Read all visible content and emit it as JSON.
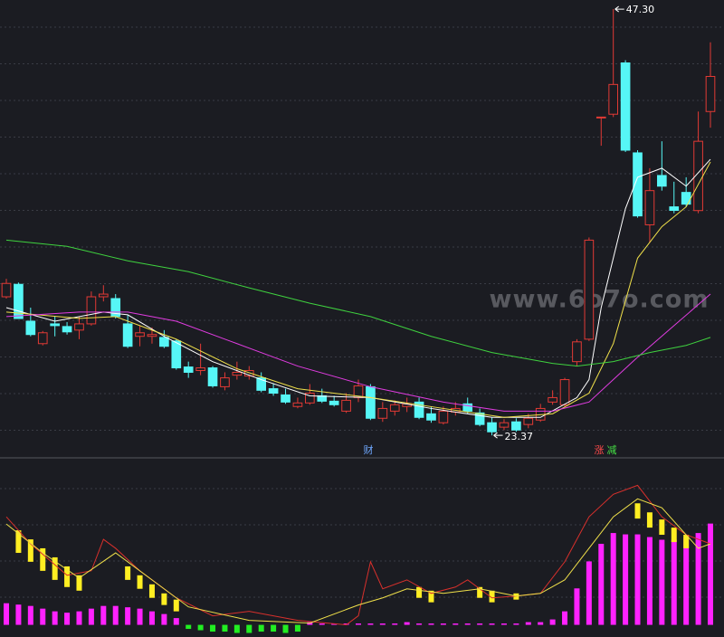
{
  "chart_data": [
    {
      "type": "candlestick",
      "up_color": "#e23a35",
      "down_color": "#56f6f6",
      "ylim": [
        22.21,
        47.71
      ],
      "open": [
        31.15,
        31.85,
        29.78,
        28.52,
        29.63,
        29.48,
        29.28,
        29.63,
        31.15,
        31.05,
        29.63,
        28.93,
        28.93,
        28.87,
        28.67,
        27.21,
        27.01,
        27.16,
        26.1,
        26.75,
        26.7,
        26.6,
        25.99,
        25.64,
        24.99,
        25.19,
        25.59,
        25.29,
        24.73,
        25.49,
        26.1,
        24.33,
        24.73,
        24.99,
        25.24,
        24.58,
        24.08,
        24.68,
        25.14,
        24.63,
        24.08,
        23.83,
        24.13,
        23.98,
        24.23,
        25.24,
        25.09,
        27.51,
        28.77,
        41.24,
        41.4,
        44.28,
        39.23,
        35.19,
        37.96,
        36.2,
        37.01,
        35.99,
        41.55
      ],
      "high": [
        32.16,
        31.95,
        30.54,
        29.23,
        30.04,
        29.73,
        30.04,
        31.45,
        31.8,
        31.3,
        30.14,
        29.53,
        29.43,
        29.28,
        28.77,
        27.51,
        28.52,
        27.26,
        26.91,
        27.51,
        27.26,
        26.91,
        26.3,
        25.99,
        25.49,
        26.25,
        25.99,
        25.59,
        25.74,
        26.5,
        26.25,
        25.24,
        25.34,
        25.49,
        25.49,
        24.99,
        24.99,
        25.24,
        25.49,
        24.88,
        24.38,
        24.28,
        24.33,
        24.58,
        25.14,
        25.9,
        26.6,
        28.77,
        34.48,
        41.24,
        47.3,
        44.43,
        39.38,
        38.37,
        39.88,
        37.61,
        37.86,
        41.55,
        45.44
      ],
      "low": [
        31.05,
        29.93,
        28.93,
        28.42,
        28.93,
        29.03,
        28.77,
        29.53,
        30.89,
        29.93,
        28.27,
        28.37,
        28.52,
        28.27,
        27.06,
        26.6,
        26.75,
        26.05,
        25.9,
        26.5,
        26.5,
        25.79,
        25.59,
        25.14,
        24.89,
        25.09,
        25.19,
        24.99,
        24.63,
        25.24,
        24.23,
        24.13,
        24.48,
        24.68,
        24.28,
        24.08,
        23.98,
        24.48,
        24.58,
        23.88,
        23.37,
        23.67,
        23.57,
        23.77,
        24.13,
        25.09,
        24.99,
        27.26,
        28.67,
        39.63,
        41.24,
        39.28,
        35.59,
        34.18,
        37.11,
        35.84,
        36.2,
        35.84,
        40.64
      ],
      "close": [
        31.9,
        29.93,
        29.03,
        29.13,
        29.53,
        29.18,
        29.63,
        31.15,
        31.3,
        30.04,
        28.37,
        29.13,
        29.03,
        28.37,
        27.16,
        26.91,
        27.16,
        26.15,
        26.6,
        26.91,
        27.01,
        25.9,
        25.74,
        25.24,
        25.19,
        25.74,
        25.29,
        25.09,
        25.34,
        26.15,
        24.33,
        24.88,
        25.09,
        25.14,
        24.38,
        24.23,
        24.73,
        24.88,
        24.73,
        23.98,
        23.57,
        24.08,
        23.67,
        24.33,
        24.88,
        25.49,
        26.5,
        28.62,
        34.33,
        41.24,
        43.07,
        39.38,
        35.69,
        37.11,
        37.36,
        36.0,
        36.35,
        39.88,
        43.52
      ],
      "lines": [
        {
          "color": "#ffffff",
          "x": [
            0,
            4,
            8,
            10,
            13,
            17,
            21,
            25,
            30,
            35,
            40,
            44,
            47,
            48,
            49,
            51,
            52,
            54,
            56,
            58
          ],
          "values": [
            30.54,
            29.78,
            30.29,
            30.14,
            28.93,
            27.51,
            26.5,
            25.59,
            25.49,
            24.88,
            24.38,
            24.38,
            25.49,
            26.5,
            30.54,
            36.1,
            37.86,
            38.37,
            37.36,
            38.87
          ]
        },
        {
          "color": "#f0e04a",
          "x": [
            0,
            6,
            9,
            14,
            19,
            24,
            30,
            36,
            41,
            45,
            48,
            50,
            52,
            54,
            56,
            58
          ],
          "values": [
            30.29,
            29.94,
            30.04,
            28.77,
            27.11,
            25.99,
            25.49,
            24.88,
            24.38,
            24.58,
            25.74,
            28.52,
            33.32,
            35.09,
            36.2,
            38.72
          ]
        },
        {
          "color": "#e03ce0",
          "x": [
            0,
            6,
            10,
            14,
            19,
            24,
            30,
            36,
            41,
            45,
            48,
            50,
            52,
            55,
            58
          ],
          "values": [
            30.04,
            30.29,
            30.29,
            29.78,
            28.52,
            27.26,
            26.1,
            25.24,
            24.73,
            24.73,
            25.24,
            26.5,
            27.76,
            29.53,
            31.3
          ]
        },
        {
          "color": "#3fd23f",
          "x": [
            0,
            5,
            10,
            15,
            20,
            25,
            30,
            35,
            40,
            45,
            47,
            50,
            53,
            56,
            58
          ],
          "values": [
            34.33,
            33.98,
            33.17,
            32.56,
            31.65,
            30.79,
            30.04,
            28.93,
            28.02,
            27.41,
            27.26,
            27.51,
            28.02,
            28.42,
            28.87
          ]
        }
      ],
      "annotations": [
        {
          "index": 50,
          "value": 47.3,
          "label": "47.30"
        },
        {
          "index": 40,
          "value": 23.37,
          "label": "23.37"
        }
      ]
    },
    {
      "type": "indicator",
      "ylim": [
        -9,
        123
      ],
      "lines": [
        {
          "color": "#d8302c",
          "x": [
            0,
            2,
            5,
            7,
            8,
            9,
            11,
            14,
            17,
            20,
            24,
            28,
            29,
            30,
            31,
            33,
            35,
            37,
            38,
            40,
            42,
            44,
            46,
            48,
            50,
            52,
            54,
            56,
            58
          ],
          "values": [
            80,
            60,
            36.7,
            40,
            63.3,
            56.7,
            40,
            20,
            6.7,
            10,
            3.3,
            0,
            6.7,
            46.7,
            26.7,
            33.3,
            23.3,
            28,
            33.3,
            20,
            21.3,
            23.3,
            46.7,
            80,
            96.7,
            103.3,
            80,
            66.7,
            60
          ]
        },
        {
          "color": "#f0e04a",
          "x": [
            0,
            3,
            6,
            9,
            12,
            15,
            20,
            25,
            29,
            31,
            33,
            36,
            39,
            42,
            44,
            46,
            48,
            50,
            52,
            54,
            56,
            57,
            58
          ],
          "values": [
            74.7,
            53.3,
            34.7,
            53.3,
            33.3,
            13.3,
            3.3,
            1.3,
            14.7,
            20,
            26.7,
            23.3,
            26.7,
            21.3,
            23.3,
            33.3,
            56.7,
            80,
            93.3,
            86.7,
            66.7,
            56.7,
            60
          ]
        }
      ],
      "histogram": [
        16,
        15,
        14,
        12,
        10,
        9,
        10,
        12,
        14,
        14,
        13,
        12,
        10,
        8,
        5,
        -3,
        -4,
        -5,
        -5,
        -6,
        -6,
        -5,
        -5,
        -6,
        -5,
        2,
        1,
        1,
        1,
        1,
        1,
        1,
        1,
        2,
        1,
        1,
        1,
        1,
        1,
        1,
        1,
        1,
        1,
        2,
        2,
        4,
        10,
        27,
        47,
        60,
        68,
        67,
        67,
        65,
        63,
        63,
        65,
        68,
        75
      ],
      "positive_color": "#ff22ff",
      "negative_color": "#22ee22",
      "signal_color": "#ffee22",
      "signal_top": [
        null,
        70,
        63.3,
        56.7,
        50,
        43.3,
        36.7,
        null,
        null,
        null,
        43.3,
        36.7,
        30,
        23.3,
        18.7,
        null,
        null,
        null,
        null,
        null,
        null,
        null,
        null,
        null,
        null,
        null,
        null,
        null,
        null,
        null,
        null,
        null,
        null,
        null,
        28,
        25.3,
        null,
        null,
        null,
        28,
        25.3,
        null,
        23.3,
        null,
        null,
        null,
        null,
        null,
        null,
        null,
        null,
        null,
        90,
        83.3,
        78,
        72,
        66.7,
        null,
        null
      ],
      "signal_bottom": [
        null,
        53.3,
        46.7,
        40,
        33.3,
        28,
        25.3,
        null,
        null,
        null,
        33.3,
        26.7,
        20,
        14.7,
        10,
        null,
        null,
        null,
        null,
        null,
        null,
        null,
        null,
        null,
        null,
        null,
        null,
        null,
        null,
        null,
        null,
        null,
        null,
        null,
        20,
        16.7,
        null,
        null,
        null,
        20,
        16.7,
        null,
        18.7,
        null,
        null,
        null,
        null,
        null,
        null,
        null,
        null,
        null,
        78.7,
        72,
        66.7,
        61.3,
        56.7,
        null,
        null
      ]
    }
  ],
  "markers": [
    {
      "text": "财",
      "color": "#6fa8ff"
    },
    {
      "text": "涨",
      "color": "#ff4a4a"
    },
    {
      "text": "减",
      "color": "#44dd44"
    }
  ],
  "watermark": "www.6o7o.com"
}
